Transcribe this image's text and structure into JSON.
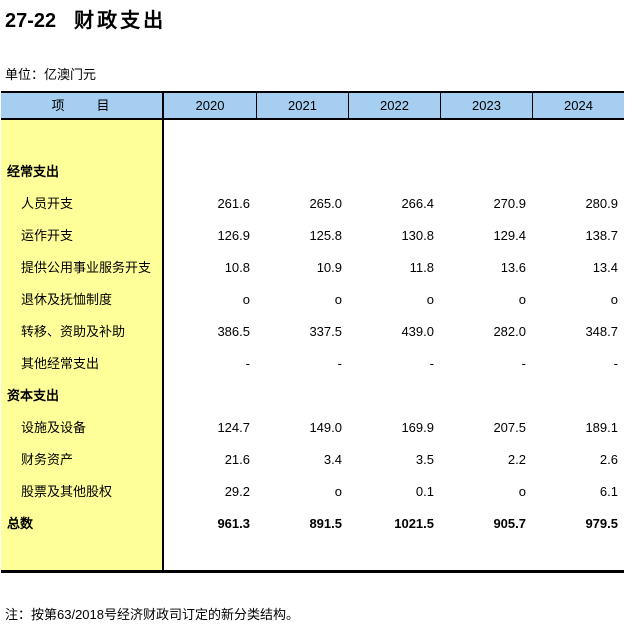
{
  "page": {
    "table_number": "27-22",
    "title": "财政支出",
    "unit_label": "单位：亿澳门元",
    "note": "注：按第63/2018号经济财政司订定的新分类结构。"
  },
  "table": {
    "item_header": "项　　目",
    "years": [
      "2020",
      "2021",
      "2022",
      "2023",
      "2024"
    ],
    "rows": [
      {
        "label": "经常支出",
        "bold": true,
        "indent": false,
        "values": [
          "",
          "",
          "",
          "",
          ""
        ]
      },
      {
        "label": "人员开支",
        "bold": false,
        "indent": true,
        "values": [
          "261.6",
          "265.0",
          "266.4",
          "270.9",
          "280.9"
        ]
      },
      {
        "label": "运作开支",
        "bold": false,
        "indent": true,
        "values": [
          "126.9",
          "125.8",
          "130.8",
          "129.4",
          "138.7"
        ]
      },
      {
        "label": "提供公用事业服务开支",
        "bold": false,
        "indent": true,
        "values": [
          "10.8",
          "10.9",
          "11.8",
          "13.6",
          "13.4"
        ]
      },
      {
        "label": "退休及抚恤制度",
        "bold": false,
        "indent": true,
        "values": [
          "o",
          "o",
          "o",
          "o",
          "o"
        ]
      },
      {
        "label": "转移、资助及补助",
        "bold": false,
        "indent": true,
        "values": [
          "386.5",
          "337.5",
          "439.0",
          "282.0",
          "348.7"
        ]
      },
      {
        "label": "其他经常支出",
        "bold": false,
        "indent": true,
        "values": [
          "-",
          "-",
          "-",
          "-",
          "-"
        ]
      },
      {
        "label": "资本支出",
        "bold": true,
        "indent": false,
        "values": [
          "",
          "",
          "",
          "",
          ""
        ]
      },
      {
        "label": "设施及设备",
        "bold": false,
        "indent": true,
        "values": [
          "124.7",
          "149.0",
          "169.9",
          "207.5",
          "189.1"
        ]
      },
      {
        "label": "财务资产",
        "bold": false,
        "indent": true,
        "values": [
          "21.6",
          "3.4",
          "3.5",
          "2.2",
          "2.6"
        ]
      },
      {
        "label": "股票及其他股权",
        "bold": false,
        "indent": true,
        "values": [
          "29.2",
          "o",
          "0.1",
          "o",
          "6.1"
        ]
      },
      {
        "label": "总数",
        "bold": true,
        "indent": false,
        "values": [
          "961.3",
          "891.5",
          "1021.5",
          "905.7",
          "979.5"
        ]
      }
    ]
  },
  "colors": {
    "header_background": "#a6cef0",
    "item_column_background": "#ffff99",
    "border": "#000000",
    "text": "#000000"
  }
}
